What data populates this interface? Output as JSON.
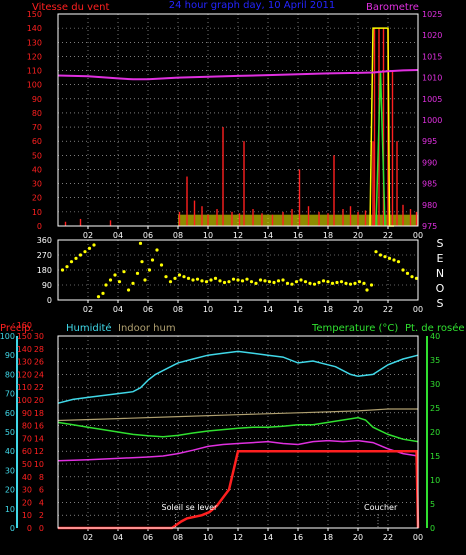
{
  "colors": {
    "bg": "#000000",
    "frame": "#ffffff",
    "grid": "#c8c8c8",
    "wind": "#ff2020",
    "windFill": "#ffff00",
    "baro": "#e030e0",
    "title": "#2424ff",
    "dir": "#ffff00",
    "humidity": "#40d8e8",
    "indoor": "#b0a070",
    "temperature": "#30e030",
    "dew": "#e030e0",
    "precip": "#ff2020",
    "tempAxis": "#30e030",
    "humAxis": "#40d8e8"
  },
  "x_ticks": [
    "02",
    "04",
    "06",
    "08",
    "10",
    "12",
    "14",
    "16",
    "18",
    "20",
    "22",
    "00"
  ],
  "chart_data": [
    {
      "type": "line",
      "title": "24 hour graph day, 10 April 2011",
      "y_label_left": "Vitesse du vent",
      "y_label_right": "Barometre",
      "x_range": [
        0,
        24
      ],
      "y_left_range": [
        0,
        150
      ],
      "y_left_ticks": [
        0,
        10,
        20,
        30,
        40,
        50,
        60,
        70,
        80,
        90,
        100,
        110,
        120,
        130,
        140,
        150
      ],
      "y_right_range": [
        975,
        1025
      ],
      "y_right_ticks": [
        975,
        980,
        985,
        990,
        995,
        1000,
        1005,
        1010,
        1015,
        1020,
        1025
      ],
      "series": [
        {
          "key": "baro",
          "axis": "right",
          "x": [
            0,
            2,
            4,
            5,
            6,
            8,
            10,
            12,
            14,
            16,
            18,
            20,
            21,
            22,
            23,
            24
          ],
          "y": [
            1010.5,
            1010.3,
            1009.8,
            1009.6,
            1009.6,
            1010.0,
            1010.2,
            1010.4,
            1010.6,
            1010.8,
            1011.0,
            1011.1,
            1011.2,
            1011.5,
            1011.7,
            1011.8
          ]
        },
        {
          "key": "wind",
          "axis": "left",
          "style": "bars",
          "x": [
            0.5,
            1.5,
            3.5,
            8.1,
            8.6,
            9.1,
            9.6,
            10.0,
            10.6,
            11.0,
            11.6,
            12.1,
            12.4,
            13.0,
            13.6,
            14.3,
            15.0,
            15.6,
            16.1,
            16.7,
            17.4,
            18.0,
            18.4,
            19.0,
            19.5,
            20.0,
            20.5,
            21.0,
            21.1,
            21.4,
            21.7,
            22.0,
            22.3,
            22.6,
            23.0,
            23.5,
            23.9
          ],
          "y": [
            3,
            5,
            4,
            10,
            35,
            18,
            14,
            8,
            12,
            70,
            10,
            9,
            60,
            12,
            9,
            8,
            10,
            12,
            40,
            14,
            10,
            9,
            50,
            12,
            14,
            10,
            11,
            60,
            140,
            140,
            140,
            140,
            110,
            60,
            15,
            12,
            10
          ]
        },
        {
          "key": "gust",
          "axis": "left",
          "style": "envelope",
          "x": [
            20.8,
            21.0,
            22.0,
            22.1,
            22.4
          ],
          "y": [
            0,
            140,
            140,
            0,
            0
          ]
        },
        {
          "key": "gust2",
          "axis": "left",
          "style": "spike",
          "x": [
            21.2,
            21.5,
            21.8
          ],
          "y": [
            0,
            110,
            0
          ]
        }
      ]
    },
    {
      "type": "scatter",
      "y_label_right": "S E N O S",
      "x_range": [
        0,
        24
      ],
      "y_range": [
        0,
        360
      ],
      "y_ticks": [
        0,
        90,
        180,
        270,
        360
      ],
      "series": [
        {
          "key": "dir",
          "x": [
            0.3,
            0.6,
            0.9,
            1.2,
            1.5,
            1.8,
            2.1,
            2.4,
            2.7,
            3.0,
            3.2,
            3.5,
            3.8,
            4.1,
            4.4,
            4.7,
            5.0,
            5.3,
            5.5,
            5.6,
            5.8,
            6.1,
            6.3,
            6.6,
            6.9,
            7.2,
            7.5,
            7.8,
            8.1,
            8.4,
            8.7,
            9.0,
            9.3,
            9.6,
            9.9,
            10.2,
            10.5,
            10.8,
            11.1,
            11.4,
            11.7,
            12.0,
            12.3,
            12.6,
            12.9,
            13.2,
            13.5,
            13.8,
            14.1,
            14.4,
            14.7,
            15.0,
            15.3,
            15.6,
            15.9,
            16.2,
            16.5,
            16.8,
            17.1,
            17.4,
            17.7,
            18.0,
            18.3,
            18.6,
            18.9,
            19.2,
            19.5,
            19.8,
            20.1,
            20.4,
            20.6,
            20.9,
            21.2,
            21.5,
            21.8,
            22.1,
            22.4,
            22.7,
            23.0,
            23.3,
            23.6,
            23.9
          ],
          "y": [
            180,
            200,
            230,
            250,
            270,
            290,
            310,
            330,
            20,
            40,
            90,
            120,
            150,
            110,
            170,
            60,
            100,
            160,
            340,
            230,
            120,
            180,
            240,
            300,
            210,
            140,
            110,
            130,
            150,
            140,
            130,
            120,
            125,
            115,
            110,
            120,
            130,
            115,
            105,
            110,
            125,
            120,
            115,
            125,
            110,
            100,
            120,
            115,
            110,
            105,
            115,
            120,
            100,
            95,
            110,
            120,
            110,
            100,
            95,
            105,
            115,
            110,
            100,
            105,
            110,
            100,
            95,
            100,
            110,
            100,
            60,
            90,
            290,
            270,
            260,
            250,
            240,
            230,
            180,
            160,
            140,
            130
          ]
        }
      ]
    },
    {
      "type": "line",
      "labels": {
        "precip": "Précip.",
        "humidity": "Humidité",
        "indoor": "Indoor hum",
        "temp": "Temperature (°C)",
        "dew": "Pt. de rosée"
      },
      "annotations": [
        {
          "text": "Soleil se lever",
          "x": 6.9,
          "y": 0.6
        },
        {
          "text": "Coucher",
          "x": 20.4,
          "y": 0.6
        }
      ],
      "x_range": [
        0,
        24
      ],
      "axes": {
        "precip": {
          "range": [
            0,
            30
          ],
          "ticks": [
            0,
            2,
            4,
            6,
            8,
            10,
            12,
            14,
            16,
            18,
            20,
            22,
            24,
            26,
            28,
            30
          ]
        },
        "humidity": {
          "range": [
            0,
            100
          ],
          "ticks": [
            0,
            10,
            20,
            30,
            40,
            50,
            60,
            70,
            80,
            90,
            100
          ]
        },
        "dew": {
          "range": [
            0,
            150
          ],
          "ticks": [
            0,
            10,
            20,
            30,
            40,
            50,
            60,
            70,
            80,
            90,
            100,
            110,
            120,
            130,
            140,
            150
          ],
          "top_label": "160"
        },
        "temp": {
          "range": [
            0,
            40
          ],
          "ticks": [
            0,
            5,
            10,
            15,
            20,
            25,
            30,
            35,
            40
          ]
        }
      },
      "series": [
        {
          "key": "humidity",
          "axis": "humidity",
          "x": [
            0,
            1,
            2,
            3,
            4,
            5,
            5.5,
            6,
            6.5,
            7,
            8,
            9,
            10,
            11,
            12,
            13,
            14,
            15,
            16,
            17,
            18,
            18.5,
            19,
            19.5,
            20,
            21,
            22,
            23,
            24
          ],
          "y": [
            65,
            67,
            68,
            69,
            70,
            71,
            73,
            77,
            80,
            82,
            86,
            88,
            90,
            91,
            92,
            91,
            90,
            89,
            86,
            87,
            85,
            84,
            82,
            80,
            79,
            80,
            85,
            88,
            90
          ]
        },
        {
          "key": "indoor",
          "axis": "humidity",
          "x": [
            0,
            4,
            8,
            12,
            16,
            20,
            22,
            23,
            24
          ],
          "y": [
            56,
            57,
            58,
            59,
            60,
            61,
            62,
            62,
            62
          ]
        },
        {
          "key": "temp",
          "axis": "temp",
          "x": [
            0,
            1,
            2,
            3,
            4,
            5,
            6,
            7,
            8,
            9,
            10,
            11,
            12,
            13,
            14,
            15,
            16,
            17,
            18,
            19,
            20,
            20.5,
            21,
            22,
            23,
            24
          ],
          "y": [
            22,
            21.5,
            21,
            20.5,
            20,
            19.5,
            19.2,
            19,
            19.3,
            19.8,
            20.2,
            20.5,
            20.8,
            21.0,
            21.0,
            21.2,
            21.5,
            21.5,
            22,
            22.5,
            23,
            22.5,
            21,
            19.5,
            18.5,
            18
          ]
        },
        {
          "key": "dew",
          "axis": "temp",
          "x": [
            0,
            2,
            4,
            6,
            7,
            8,
            9,
            10,
            11,
            12,
            13,
            14,
            15,
            16,
            17,
            18,
            19,
            20,
            21,
            22,
            23,
            24
          ],
          "y": [
            14,
            14.2,
            14.5,
            14.8,
            15.0,
            15.5,
            16.2,
            17,
            17.4,
            17.6,
            17.8,
            18.0,
            17.6,
            17.4,
            18.0,
            18.2,
            18.0,
            18.2,
            17.8,
            16.5,
            15.5,
            15
          ]
        },
        {
          "key": "precip",
          "axis": "precip",
          "style": "step",
          "x": [
            0,
            7.6,
            8.2,
            8.6,
            9.6,
            10.1,
            10.6,
            11.4,
            12.0,
            16.0,
            23.9,
            24.0
          ],
          "y": [
            0,
            0,
            1.0,
            1.5,
            2.0,
            2.5,
            3.5,
            6.0,
            12.0,
            12.0,
            12.0,
            0
          ]
        }
      ]
    }
  ]
}
